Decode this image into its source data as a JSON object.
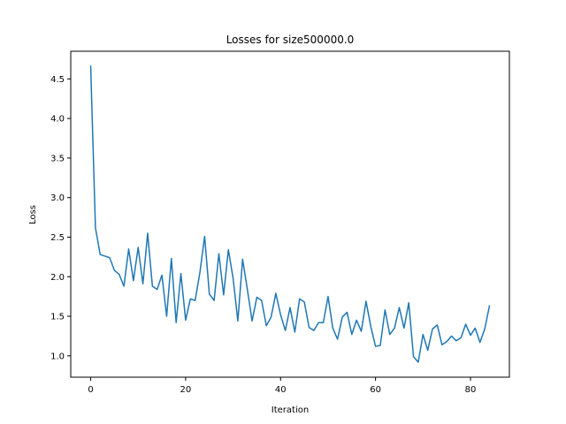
{
  "chart_data": {
    "type": "line",
    "title": "Losses for size500000.0",
    "xlabel": "Iteration",
    "ylabel": "Loss",
    "xlim": [
      -4.2,
      88.2
    ],
    "ylim": [
      0.73,
      4.85
    ],
    "xticks": [
      0,
      20,
      40,
      60,
      80
    ],
    "yticks": [
      1.0,
      1.5,
      2.0,
      2.5,
      3.0,
      3.5,
      4.0,
      4.5
    ],
    "xtick_labels": [
      "0",
      "20",
      "40",
      "60",
      "80"
    ],
    "ytick_labels": [
      "1.0",
      "1.5",
      "2.0",
      "2.5",
      "3.0",
      "3.5",
      "4.0",
      "4.5"
    ],
    "grid": false,
    "series": [
      {
        "color": "#1f77b4",
        "x": [
          0,
          1,
          2,
          3,
          4,
          5,
          6,
          7,
          8,
          9,
          10,
          11,
          12,
          13,
          14,
          15,
          16,
          17,
          18,
          19,
          20,
          21,
          22,
          23,
          24,
          25,
          26,
          27,
          28,
          29,
          30,
          31,
          32,
          33,
          34,
          35,
          36,
          37,
          38,
          39,
          40,
          41,
          42,
          43,
          44,
          45,
          46,
          47,
          48,
          49,
          50,
          51,
          52,
          53,
          54,
          55,
          56,
          57,
          58,
          59,
          60,
          61,
          62,
          63,
          64,
          65,
          66,
          67,
          68,
          69,
          70,
          71,
          72,
          73,
          74,
          75,
          76,
          77,
          78,
          79,
          80,
          81,
          82,
          83,
          84
        ],
        "values": [
          4.66,
          2.62,
          2.28,
          2.26,
          2.24,
          2.08,
          2.03,
          1.88,
          2.35,
          1.95,
          2.37,
          1.91,
          2.55,
          1.88,
          1.84,
          2.02,
          1.5,
          2.23,
          1.42,
          2.04,
          1.45,
          1.72,
          1.7,
          2.05,
          2.51,
          1.78,
          1.7,
          2.29,
          1.77,
          2.34,
          1.98,
          1.44,
          2.22,
          1.84,
          1.44,
          1.74,
          1.7,
          1.38,
          1.49,
          1.79,
          1.52,
          1.32,
          1.61,
          1.3,
          1.72,
          1.68,
          1.36,
          1.32,
          1.42,
          1.42,
          1.75,
          1.35,
          1.21,
          1.49,
          1.55,
          1.27,
          1.45,
          1.31,
          1.69,
          1.37,
          1.12,
          1.13,
          1.58,
          1.27,
          1.35,
          1.61,
          1.35,
          1.67,
          0.99,
          0.92,
          1.27,
          1.07,
          1.34,
          1.39,
          1.14,
          1.18,
          1.25,
          1.19,
          1.23,
          1.4,
          1.26,
          1.35,
          1.17,
          1.34,
          1.63
        ]
      }
    ]
  }
}
